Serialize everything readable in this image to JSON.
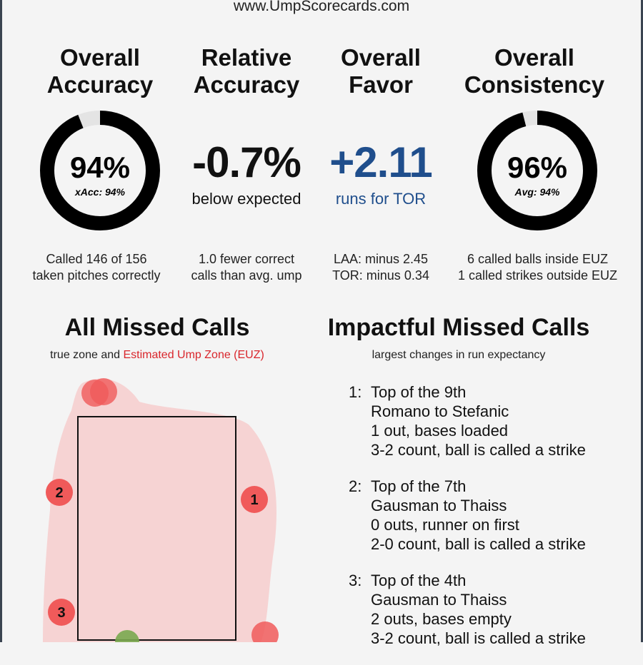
{
  "site": "www.UmpScorecards.com",
  "stats": {
    "overall_accuracy": {
      "title_line1": "Overall",
      "title_line2": "Accuracy",
      "value": "94%",
      "sub": "xAcc: 94%",
      "fraction": 0.94,
      "foot_line1": "Called 146 of 156",
      "foot_line2": "taken pitches correctly"
    },
    "relative_accuracy": {
      "title_line1": "Relative",
      "title_line2": "Accuracy",
      "value": "-0.7%",
      "sub": "below expected",
      "foot_line1": "1.0 fewer correct",
      "foot_line2": "calls than avg. ump"
    },
    "overall_favor": {
      "title_line1": "Overall",
      "title_line2": "Favor",
      "value": "+2.11",
      "sub": "runs for TOR",
      "accent": "#1f4e8c",
      "foot_line1": "LAA: minus 2.45",
      "foot_line2": "TOR: minus 0.34"
    },
    "overall_consistency": {
      "title_line1": "Overall",
      "title_line2": "Consistency",
      "value": "96%",
      "sub": "Avg: 94%",
      "fraction": 0.96,
      "foot_line1": "6 called balls inside EUZ",
      "foot_line2": "1 called strikes outside EUZ"
    }
  },
  "missed_calls": {
    "title": "All Missed Calls",
    "subtitle_prefix": "true zone and ",
    "subtitle_highlight": "Estimated Ump Zone (EUZ)",
    "highlight_color": "#d9262c",
    "markers": [
      {
        "label": "1",
        "color": "#f05a5a"
      },
      {
        "label": "2",
        "color": "#f05a5a"
      },
      {
        "label": "3",
        "color": "#f05a5a"
      }
    ]
  },
  "impactful": {
    "title": "Impactful Missed Calls",
    "subtitle": "largest changes in run expectancy",
    "calls": [
      {
        "num": "1:",
        "inning": "Top of the 9th",
        "matchup": "Romano to Stefanic",
        "situation": "1 out, bases loaded",
        "result": "3-2 count, ball is called a strike"
      },
      {
        "num": "2:",
        "inning": "Top of the 7th",
        "matchup": "Gausman to Thaiss",
        "situation": "0 outs, runner on first",
        "result": "2-0 count, ball is called a strike"
      },
      {
        "num": "3:",
        "inning": "Top of the 4th",
        "matchup": "Gausman to Thaiss",
        "situation": "2 outs, bases empty",
        "result": "3-2 count, ball is called a strike"
      }
    ]
  }
}
